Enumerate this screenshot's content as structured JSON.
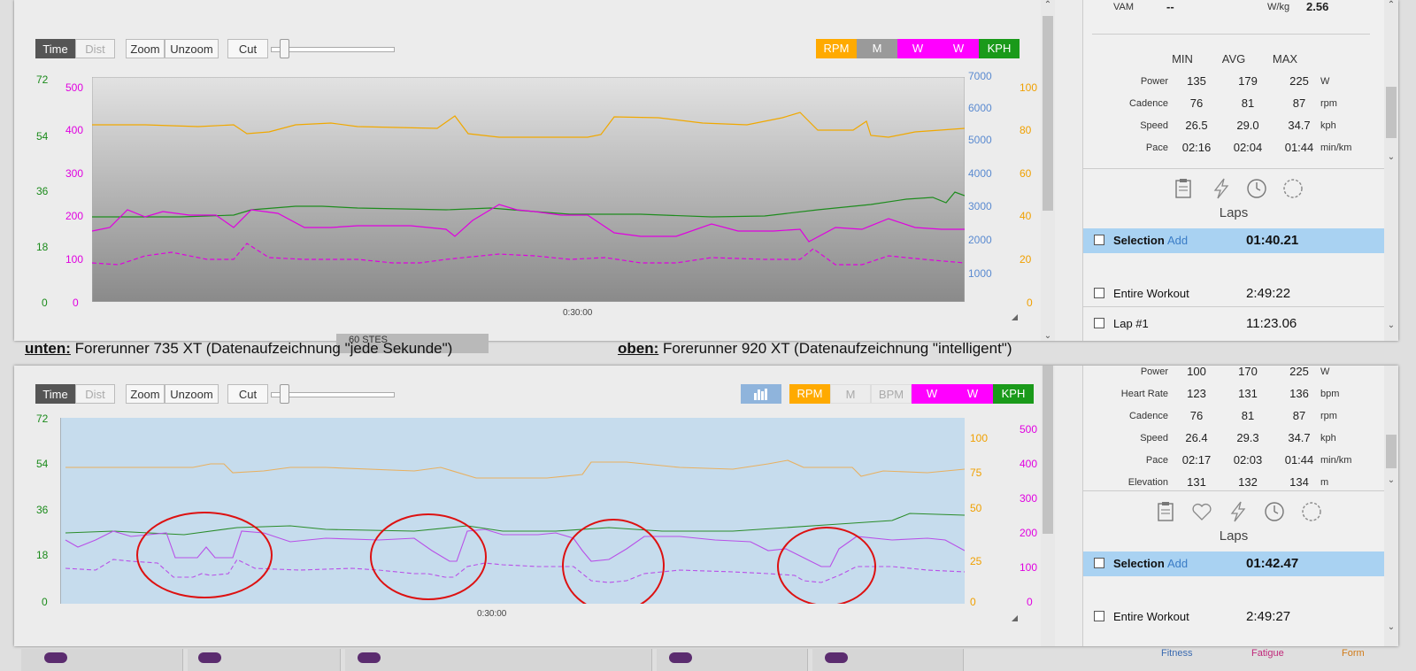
{
  "top": {
    "toolbar": {
      "time": "Time",
      "dist": "Dist",
      "zoom": "Zoom",
      "unzoom": "Unzoom",
      "cut": "Cut"
    },
    "series_buttons": [
      {
        "label": "RPM",
        "color": "#ffaa00"
      },
      {
        "label": "M",
        "color": "#9a9a9a"
      },
      {
        "label": "W",
        "color": "#ff00ff"
      },
      {
        "label": "W",
        "color": "#ff00ff"
      },
      {
        "label": "KPH",
        "color": "#1a9a1a"
      }
    ],
    "axes": {
      "left_green": [
        "72",
        "54",
        "36",
        "18",
        "0"
      ],
      "left_magenta": [
        "500",
        "400",
        "300",
        "200",
        "100",
        "0"
      ],
      "right_blue": [
        "7000",
        "6000",
        "5000",
        "4000",
        "3000",
        "2000",
        "1000"
      ],
      "right_orange": [
        "100",
        "80",
        "60",
        "40",
        "20",
        "0"
      ]
    },
    "time_label": "0:30:00",
    "sidebar": {
      "vam_label": "VAM",
      "vam_value": "--",
      "wkg_label": "W/kg",
      "wkg_value": "2.56",
      "headers": [
        "MIN",
        "AVG",
        "MAX"
      ],
      "rows": [
        {
          "name": "Power",
          "min": "135",
          "avg": "179",
          "max": "225",
          "unit": "W"
        },
        {
          "name": "Cadence",
          "min": "76",
          "avg": "81",
          "max": "87",
          "unit": "rpm"
        },
        {
          "name": "Speed",
          "min": "26.5",
          "avg": "29.0",
          "max": "34.7",
          "unit": "kph"
        },
        {
          "name": "Pace",
          "min": "02:16",
          "avg": "02:04",
          "max": "01:44",
          "unit": "min/km"
        }
      ],
      "icons": [
        "clipboard-icon",
        "lightning-icon",
        "clock-icon",
        "dashed-circle-icon"
      ],
      "laps_title": "Laps",
      "laps": [
        {
          "name": "Selection",
          "add": "Add",
          "time": "01:40.21",
          "selected": true
        },
        {
          "name": "Entire Workout",
          "time": "2:49:22"
        },
        {
          "name": "Lap #1",
          "time": "11:23.06"
        }
      ]
    }
  },
  "captions": {
    "left_bold": "unten:",
    "left_text": " Forerunner 735 XT (Datenaufzeichnung \"jede Sekunde\")",
    "right_bold": "oben:",
    "right_text": " Forerunner 920 XT (Datenaufzeichnung \"intelligent\")",
    "partial": "60 STES"
  },
  "bottom": {
    "toolbar": {
      "time": "Time",
      "dist": "Dist",
      "zoom": "Zoom",
      "unzoom": "Unzoom",
      "cut": "Cut"
    },
    "bar_icon": "bar-chart-icon",
    "series_buttons": [
      {
        "label": "RPM",
        "color": "#ffaa00",
        "on": true
      },
      {
        "label": "M",
        "color": "#e6e6e6",
        "on": false
      },
      {
        "label": "BPM",
        "color": "#e6e6e6",
        "on": false
      },
      {
        "label": "W",
        "color": "#ff00ff",
        "on": true
      },
      {
        "label": "W",
        "color": "#ff00ff",
        "on": true
      },
      {
        "label": "KPH",
        "color": "#1a9a1a",
        "on": true
      }
    ],
    "axes": {
      "left_green": [
        "72",
        "54",
        "36",
        "18",
        "0"
      ],
      "right_orange": [
        "100",
        "75",
        "50",
        "25",
        "0"
      ],
      "right_magenta": [
        "500",
        "400",
        "300",
        "200",
        "100",
        "0"
      ]
    },
    "time_label": "0:30:00",
    "sidebar": {
      "rows": [
        {
          "name": "Power",
          "min": "100",
          "avg": "170",
          "max": "225",
          "unit": "W"
        },
        {
          "name": "Heart Rate",
          "min": "123",
          "avg": "131",
          "max": "136",
          "unit": "bpm"
        },
        {
          "name": "Cadence",
          "min": "76",
          "avg": "81",
          "max": "87",
          "unit": "rpm"
        },
        {
          "name": "Speed",
          "min": "26.4",
          "avg": "29.3",
          "max": "34.7",
          "unit": "kph"
        },
        {
          "name": "Pace",
          "min": "02:17",
          "avg": "02:03",
          "max": "01:44",
          "unit": "min/km"
        },
        {
          "name": "Elevation",
          "min": "131",
          "avg": "132",
          "max": "134",
          "unit": "m"
        }
      ],
      "icons": [
        "clipboard-icon",
        "heart-icon",
        "lightning-icon",
        "clock-icon",
        "dashed-circle-icon"
      ],
      "laps_title": "Laps",
      "laps": [
        {
          "name": "Selection",
          "add": "Add",
          "time": "01:42.47",
          "selected": true
        },
        {
          "name": "Entire Workout",
          "time": "2:49:27"
        }
      ]
    }
  },
  "footer": {
    "fitness": "Fitness",
    "fatigue": "Fatigue",
    "form": "Form"
  }
}
